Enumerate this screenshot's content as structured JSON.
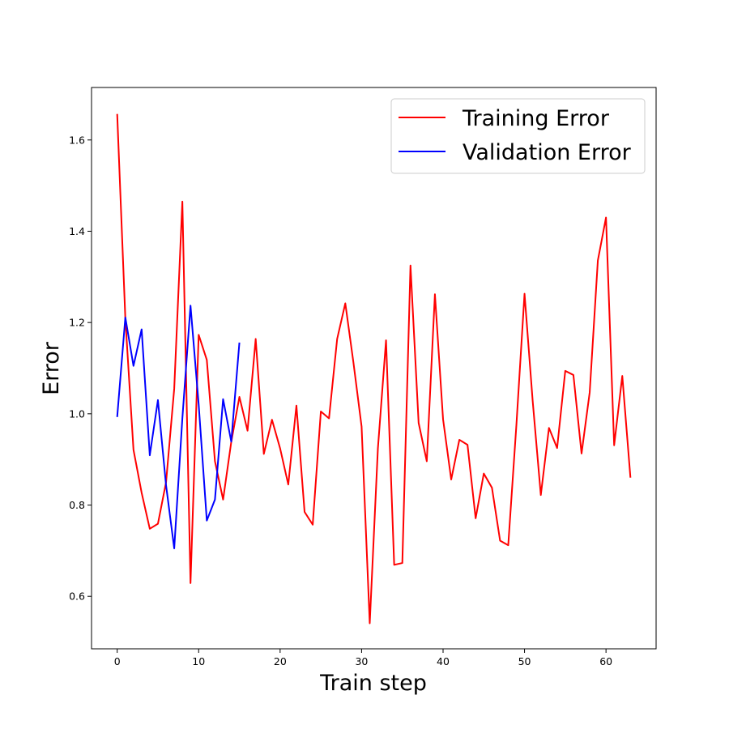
{
  "chart_data": {
    "type": "line",
    "title": "",
    "xlabel": "Train step",
    "ylabel": "Error",
    "xlim": [
      -3.15,
      66.15
    ],
    "ylim": [
      0.485,
      1.715
    ],
    "xticks": [
      0,
      10,
      20,
      30,
      40,
      50,
      60
    ],
    "yticks": [
      0.6,
      0.8,
      1.0,
      1.2,
      1.4,
      1.6
    ],
    "xtick_labels": [
      "0",
      "10",
      "20",
      "30",
      "40",
      "50",
      "60"
    ],
    "ytick_labels": [
      "0.6",
      "0.8",
      "1.0",
      "1.2",
      "1.4",
      "1.6"
    ],
    "grid": false,
    "legend_position": "top-right",
    "series": [
      {
        "name": "Training Error",
        "color": "#ff0000",
        "x": [
          0,
          1,
          2,
          3,
          4,
          5,
          6,
          7,
          8,
          9,
          10,
          11,
          12,
          13,
          14,
          15,
          16,
          17,
          18,
          19,
          20,
          21,
          22,
          23,
          24,
          25,
          26,
          27,
          28,
          29,
          30,
          31,
          32,
          33,
          34,
          35,
          36,
          37,
          38,
          39,
          40,
          41,
          42,
          43,
          44,
          45,
          46,
          47,
          48,
          49,
          50,
          51,
          52,
          53,
          54,
          55,
          56,
          57,
          58,
          59,
          60,
          61,
          62,
          63
        ],
        "values": [
          1.657,
          1.209,
          0.921,
          0.827,
          0.748,
          0.759,
          0.85,
          1.055,
          1.465,
          0.629,
          1.173,
          1.118,
          0.896,
          0.812,
          0.938,
          1.037,
          0.963,
          1.164,
          0.912,
          0.987,
          0.924,
          0.845,
          1.018,
          0.785,
          0.757,
          1.005,
          0.99,
          1.164,
          1.242,
          1.112,
          0.972,
          0.541,
          0.924,
          1.161,
          0.669,
          0.673,
          1.325,
          0.98,
          0.896,
          1.262,
          0.988,
          0.856,
          0.943,
          0.932,
          0.771,
          0.869,
          0.838,
          0.722,
          0.712,
          0.975,
          1.263,
          1.028,
          0.822,
          0.969,
          0.925,
          1.094,
          1.085,
          0.913,
          1.047,
          1.336,
          1.43,
          0.931,
          1.083,
          0.86
        ]
      },
      {
        "name": "Validation Error",
        "color": "#0000ff",
        "x": [
          0,
          1,
          2,
          3,
          4,
          5,
          6,
          7,
          8,
          9,
          10,
          11,
          12,
          13,
          14,
          15
        ],
        "values": [
          0.993,
          1.211,
          1.105,
          1.185,
          0.909,
          1.03,
          0.843,
          0.705,
          0.99,
          1.237,
          1.021,
          0.766,
          0.812,
          1.032,
          0.939,
          1.156
        ]
      }
    ]
  }
}
